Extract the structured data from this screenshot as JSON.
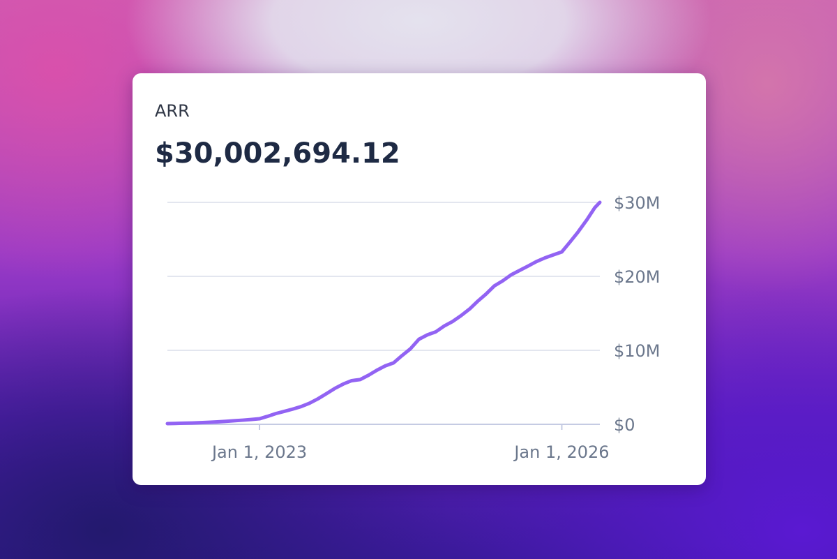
{
  "chart_data": {
    "type": "line",
    "title": "ARR",
    "subtitle": "$30,002,694.12",
    "x": [
      "2022-02-01",
      "2022-03-01",
      "2022-04-01",
      "2022-05-01",
      "2022-06-01",
      "2022-07-01",
      "2022-08-01",
      "2022-09-01",
      "2022-10-01",
      "2022-11-01",
      "2022-12-01",
      "2023-01-01",
      "2023-02-01",
      "2023-03-01",
      "2023-04-01",
      "2023-05-01",
      "2023-06-01",
      "2023-07-01",
      "2023-08-01",
      "2023-09-01",
      "2023-10-01",
      "2023-11-01",
      "2023-12-01",
      "2024-01-01",
      "2024-02-01",
      "2024-03-01",
      "2024-04-01",
      "2024-05-01",
      "2024-06-01",
      "2024-07-01",
      "2024-08-01",
      "2024-09-01",
      "2024-10-01",
      "2024-11-01",
      "2024-12-01",
      "2025-01-01",
      "2025-02-01",
      "2025-03-01",
      "2025-04-01",
      "2025-05-01",
      "2025-06-01",
      "2025-07-01",
      "2025-08-01",
      "2025-09-01",
      "2025-10-01",
      "2025-11-01",
      "2025-12-01",
      "2026-01-01",
      "2026-02-01",
      "2026-03-01",
      "2026-04-01",
      "2026-05-01",
      "2026-05-19"
    ],
    "series": [
      {
        "name": "ARR",
        "color": "#9263f3",
        "values": [
          100000,
          120000,
          150000,
          180000,
          220000,
          270000,
          330000,
          400000,
          480000,
          560000,
          650000,
          750000,
          1100000,
          1450000,
          1750000,
          2050000,
          2400000,
          2850000,
          3450000,
          4150000,
          4850000,
          5450000,
          5900000,
          6050000,
          6650000,
          7300000,
          7900000,
          8300000,
          9300000,
          10200000,
          11500000,
          12100000,
          12500000,
          13300000,
          13900000,
          14700000,
          15600000,
          16600000,
          17600000,
          18700000,
          19400000,
          20200000,
          20800000,
          21400000,
          22000000,
          22500000,
          22900000,
          23300000,
          24700000,
          26000000,
          27600000,
          29300000,
          30002694.12
        ]
      }
    ],
    "xlim": [
      "2022-02-01",
      "2026-05-19"
    ],
    "xticks": [
      {
        "value": "2023-01-01",
        "label": "Jan 1, 2023"
      },
      {
        "value": "2026-01-01",
        "label": "Jan 1, 2026"
      }
    ],
    "ylim": [
      0,
      30000000
    ],
    "yticks": [
      {
        "value": 0,
        "label": "$0"
      },
      {
        "value": 10000000,
        "label": "$10M"
      },
      {
        "value": 20000000,
        "label": "$20M"
      },
      {
        "value": 30000000,
        "label": "$30M"
      }
    ],
    "grid": true
  }
}
